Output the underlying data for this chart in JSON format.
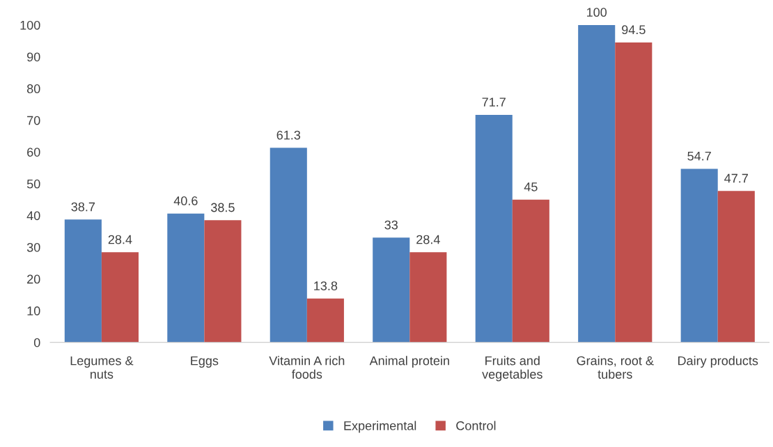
{
  "chart_data": {
    "type": "bar",
    "categories": [
      "Legumes &\nnuts",
      "Eggs",
      "Vitamin A rich\nfoods",
      "Animal protein",
      "Fruits and\nvegetables",
      "Grains, root &\ntubers",
      "Dairy products"
    ],
    "series": [
      {
        "name": "Experimental",
        "color": "#4f81bd",
        "values": [
          38.7,
          40.6,
          61.3,
          33,
          71.7,
          100,
          54.7
        ]
      },
      {
        "name": "Control",
        "color": "#c0504d",
        "values": [
          28.4,
          38.5,
          13.8,
          28.4,
          45,
          94.5,
          47.7
        ]
      }
    ],
    "ylim": [
      0,
      100
    ],
    "yticks": [
      0,
      10,
      20,
      30,
      40,
      50,
      60,
      70,
      80,
      90,
      100
    ],
    "data_labels": true,
    "legend": "bottom",
    "grid": false
  }
}
